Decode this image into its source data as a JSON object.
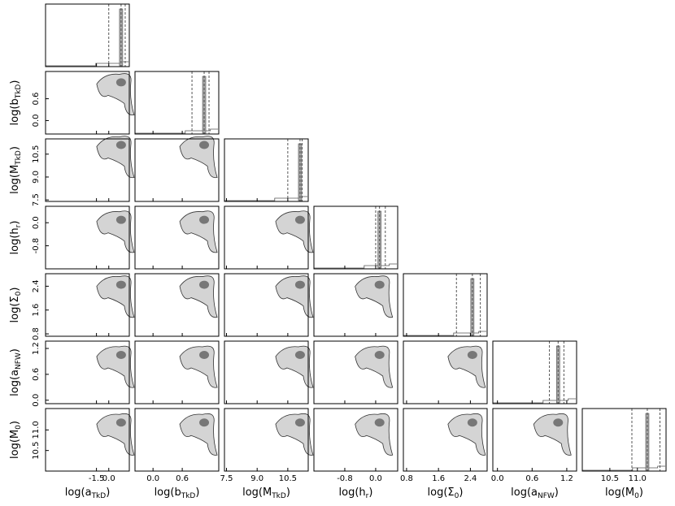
{
  "chart_data": {
    "type": "corner",
    "parameters": [
      {
        "base": "log(a",
        "sub": "TkD",
        "end": ")",
        "lim": [
          -7.7,
          2.5
        ],
        "ticks": [
          -1.5,
          {
            "value": 0,
            "label": "0.0"
          }
        ],
        "quantiles": [
          0.0,
          1.5,
          2.0
        ]
      },
      {
        "base": "log(b",
        "sub": "TkD",
        "end": ")",
        "lim": [
          -0.37,
          1.35
        ],
        "ticks": [
          {
            "value": 0,
            "label": "0.0"
          },
          0.6
        ],
        "quantiles": [
          0.8,
          1.05,
          1.15
        ]
      },
      {
        "base": "log(M",
        "sub": "TkD",
        "end": ")",
        "lim": [
          7.4,
          11.5
        ],
        "ticks": [
          7.5,
          {
            "value": 9,
            "label": "9.0"
          },
          10.5
        ],
        "quantiles": [
          10.5,
          11.1,
          11.2
        ]
      },
      {
        "base": "log(h",
        "sub": "r",
        "end": ")",
        "lim": [
          -1.6,
          0.57
        ],
        "ticks": [
          -0.8,
          {
            "value": 0,
            "label": "0.0"
          }
        ],
        "quantiles": [
          0.0,
          0.1,
          0.25
        ]
      },
      {
        "base": "log(Σ",
        "sub": "0",
        "end": ")",
        "lim": [
          0.72,
          2.82
        ],
        "ticks": [
          0.8,
          1.6,
          2.4
        ],
        "quantiles": [
          2.05,
          2.45,
          2.65
        ]
      },
      {
        "base": "log(a",
        "sub": "NFW",
        "end": ")",
        "lim": [
          -0.08,
          1.37
        ],
        "ticks": [
          {
            "value": 0,
            "label": "0.0"
          },
          0.6,
          1.2
        ],
        "quantiles": [
          0.9,
          1.05,
          1.15
        ]
      },
      {
        "base": "log(M",
        "sub": "0",
        "end": ")",
        "lim": [
          10.0,
          11.52
        ],
        "ticks": [
          10.5,
          {
            "value": 11,
            "label": "11.0"
          }
        ],
        "quantiles": [
          10.9,
          11.18,
          11.41
        ]
      }
    ]
  }
}
